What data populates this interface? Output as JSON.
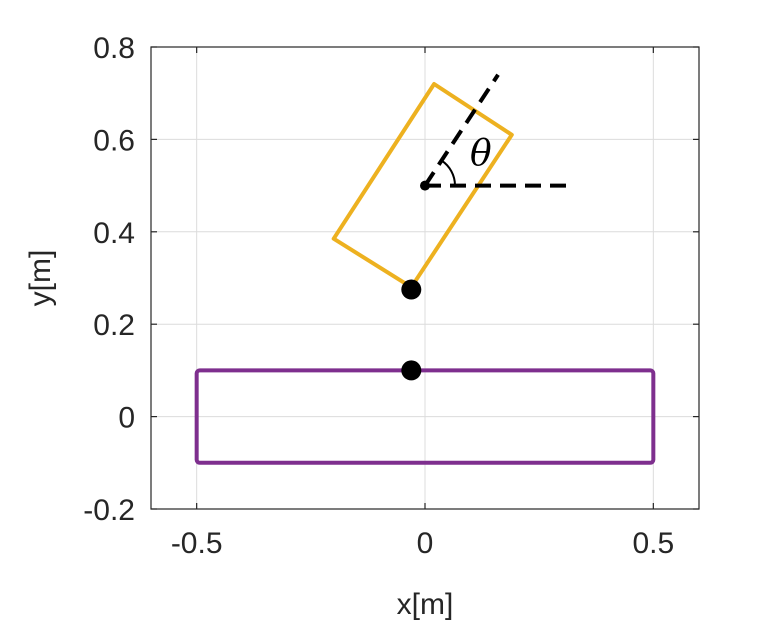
{
  "chart_data": {
    "type": "scatter",
    "title": "",
    "xlabel": "x[m]",
    "ylabel": "y[m]",
    "xlim": [
      -0.6,
      0.6
    ],
    "ylim": [
      -0.2,
      0.8
    ],
    "xticks": [
      -0.5,
      0,
      0.5
    ],
    "xtick_labels": [
      "-0.5",
      "0",
      "0.5"
    ],
    "yticks": [
      -0.2,
      0,
      0.2,
      0.4,
      0.6,
      0.8
    ],
    "ytick_labels": [
      "-0.2",
      "0",
      "0.2",
      "0.4",
      "0.6",
      "0.8"
    ],
    "grid": true,
    "colors": {
      "rectangle": "#7E2F8E",
      "rotated_box": "#EDB120",
      "points": "#000000",
      "grid": "#dcdcdc",
      "axes": "#262626"
    },
    "rectangle": {
      "x_min": -0.5,
      "x_max": 0.5,
      "y_min": -0.1,
      "y_max": 0.1
    },
    "rotated_box": {
      "vertices": [
        [
          0.02,
          0.72
        ],
        [
          0.19,
          0.61
        ],
        [
          -0.03,
          0.28
        ],
        [
          -0.2,
          0.385
        ]
      ]
    },
    "points": [
      {
        "x": -0.03,
        "y": 0.1
      },
      {
        "x": -0.03,
        "y": 0.275
      },
      {
        "x": 0.0,
        "y": 0.5
      }
    ],
    "angle": {
      "label": "θ",
      "center": [
        0.0,
        0.5
      ],
      "horizontal_end": [
        0.32,
        0.5
      ],
      "ray_end": [
        0.16,
        0.74
      ]
    }
  }
}
